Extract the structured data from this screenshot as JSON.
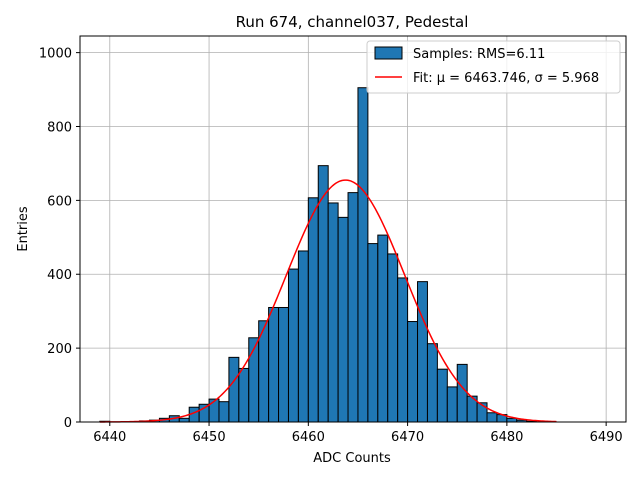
{
  "chart_data": {
    "type": "bar",
    "title": "Run 674, channel037, Pedestal",
    "xlabel": "ADC Counts",
    "ylabel": "Entries",
    "xlim": [
      6437,
      6492
    ],
    "ylim": [
      0,
      1045
    ],
    "xticks": [
      6440,
      6450,
      6460,
      6470,
      6480,
      6490
    ],
    "yticks": [
      0,
      200,
      400,
      600,
      800,
      1000
    ],
    "grid": true,
    "legend_position": "top-right",
    "colors": {
      "bars": "#1f77b4",
      "bar_edge": "#000000",
      "fit": "#ff0000"
    },
    "histogram": {
      "name": "Samples: RMS=6.11",
      "bin_start": 6439,
      "bin_width": 1.0,
      "values": [
        2,
        0,
        0,
        1,
        3,
        5,
        10,
        17,
        10,
        40,
        48,
        62,
        55,
        175,
        145,
        228,
        274,
        310,
        310,
        414,
        463,
        607,
        694,
        593,
        554,
        621,
        905,
        483,
        506,
        455,
        390,
        272,
        380,
        212,
        143,
        95,
        156,
        70,
        52,
        25,
        20,
        10,
        5,
        2,
        0,
        0,
        0,
        0,
        0,
        0,
        0
      ]
    },
    "fit": {
      "name": "Fit: μ = 6463.746, σ = 5.968",
      "mu": 6463.746,
      "sigma": 5.968,
      "amplitude": 655,
      "x_range": [
        6439,
        6485
      ]
    }
  }
}
